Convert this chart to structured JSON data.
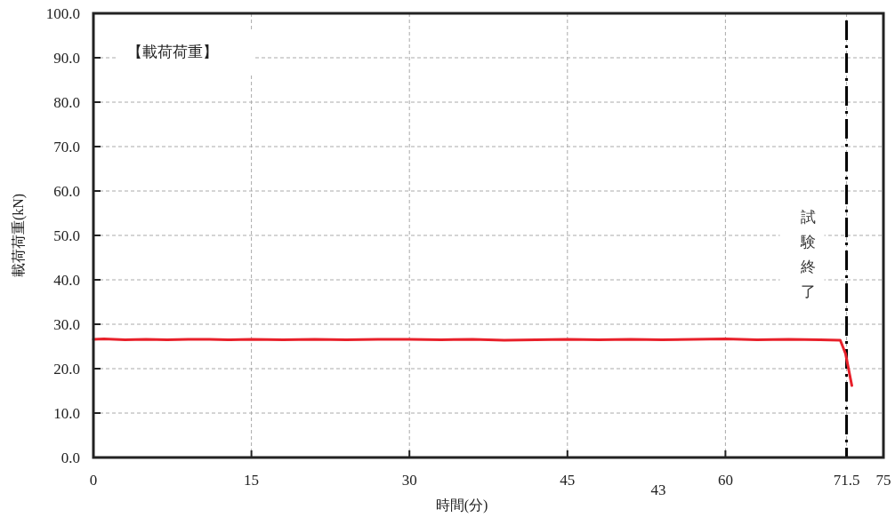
{
  "chart_data": {
    "type": "line",
    "xlabel": "時間(分)",
    "ylabel": "載荷荷重(kN)",
    "annotations": [
      "【載荷荷重】",
      "43"
    ],
    "xlim": [
      0,
      75
    ],
    "xticks": [
      0,
      15,
      30,
      45,
      60,
      71.5,
      75
    ],
    "ylim": [
      0,
      100
    ],
    "yticks": [
      {
        "value": 0,
        "label": "0.0"
      },
      {
        "value": 10,
        "label": "10.0"
      },
      {
        "value": 20,
        "label": "20.0"
      },
      {
        "value": 30,
        "label": "30.0"
      },
      {
        "value": 40,
        "label": "40.0"
      },
      {
        "value": 50,
        "label": "50.0"
      },
      {
        "value": 60,
        "label": "60.0"
      },
      {
        "value": 70,
        "label": "70.0"
      },
      {
        "value": 80,
        "label": "80.0"
      },
      {
        "value": 90,
        "label": "90.0"
      },
      {
        "value": 100,
        "label": "100.0"
      }
    ],
    "grid": true,
    "marker": "none",
    "line_style": "solid",
    "ref_lines": [
      {
        "axis": "x",
        "value": 71.5,
        "label": "試験終了",
        "color": "#000000",
        "line_style": "dashdot"
      }
    ],
    "series": [
      {
        "color": "#e8202a",
        "x": [
          0,
          1,
          3,
          5,
          7,
          9,
          11,
          13,
          15,
          18,
          21,
          24,
          27,
          30,
          33,
          36,
          39,
          42,
          45,
          48,
          51,
          54,
          57,
          60,
          63,
          66,
          69,
          70.9,
          71.4,
          72
        ],
        "values": [
          26.6,
          26.7,
          26.5,
          26.6,
          26.5,
          26.6,
          26.6,
          26.5,
          26.6,
          26.5,
          26.6,
          26.5,
          26.6,
          26.6,
          26.5,
          26.6,
          26.4,
          26.5,
          26.6,
          26.5,
          26.6,
          26.5,
          26.6,
          26.7,
          26.5,
          26.6,
          26.5,
          26.4,
          23.4,
          16.2
        ]
      }
    ]
  }
}
